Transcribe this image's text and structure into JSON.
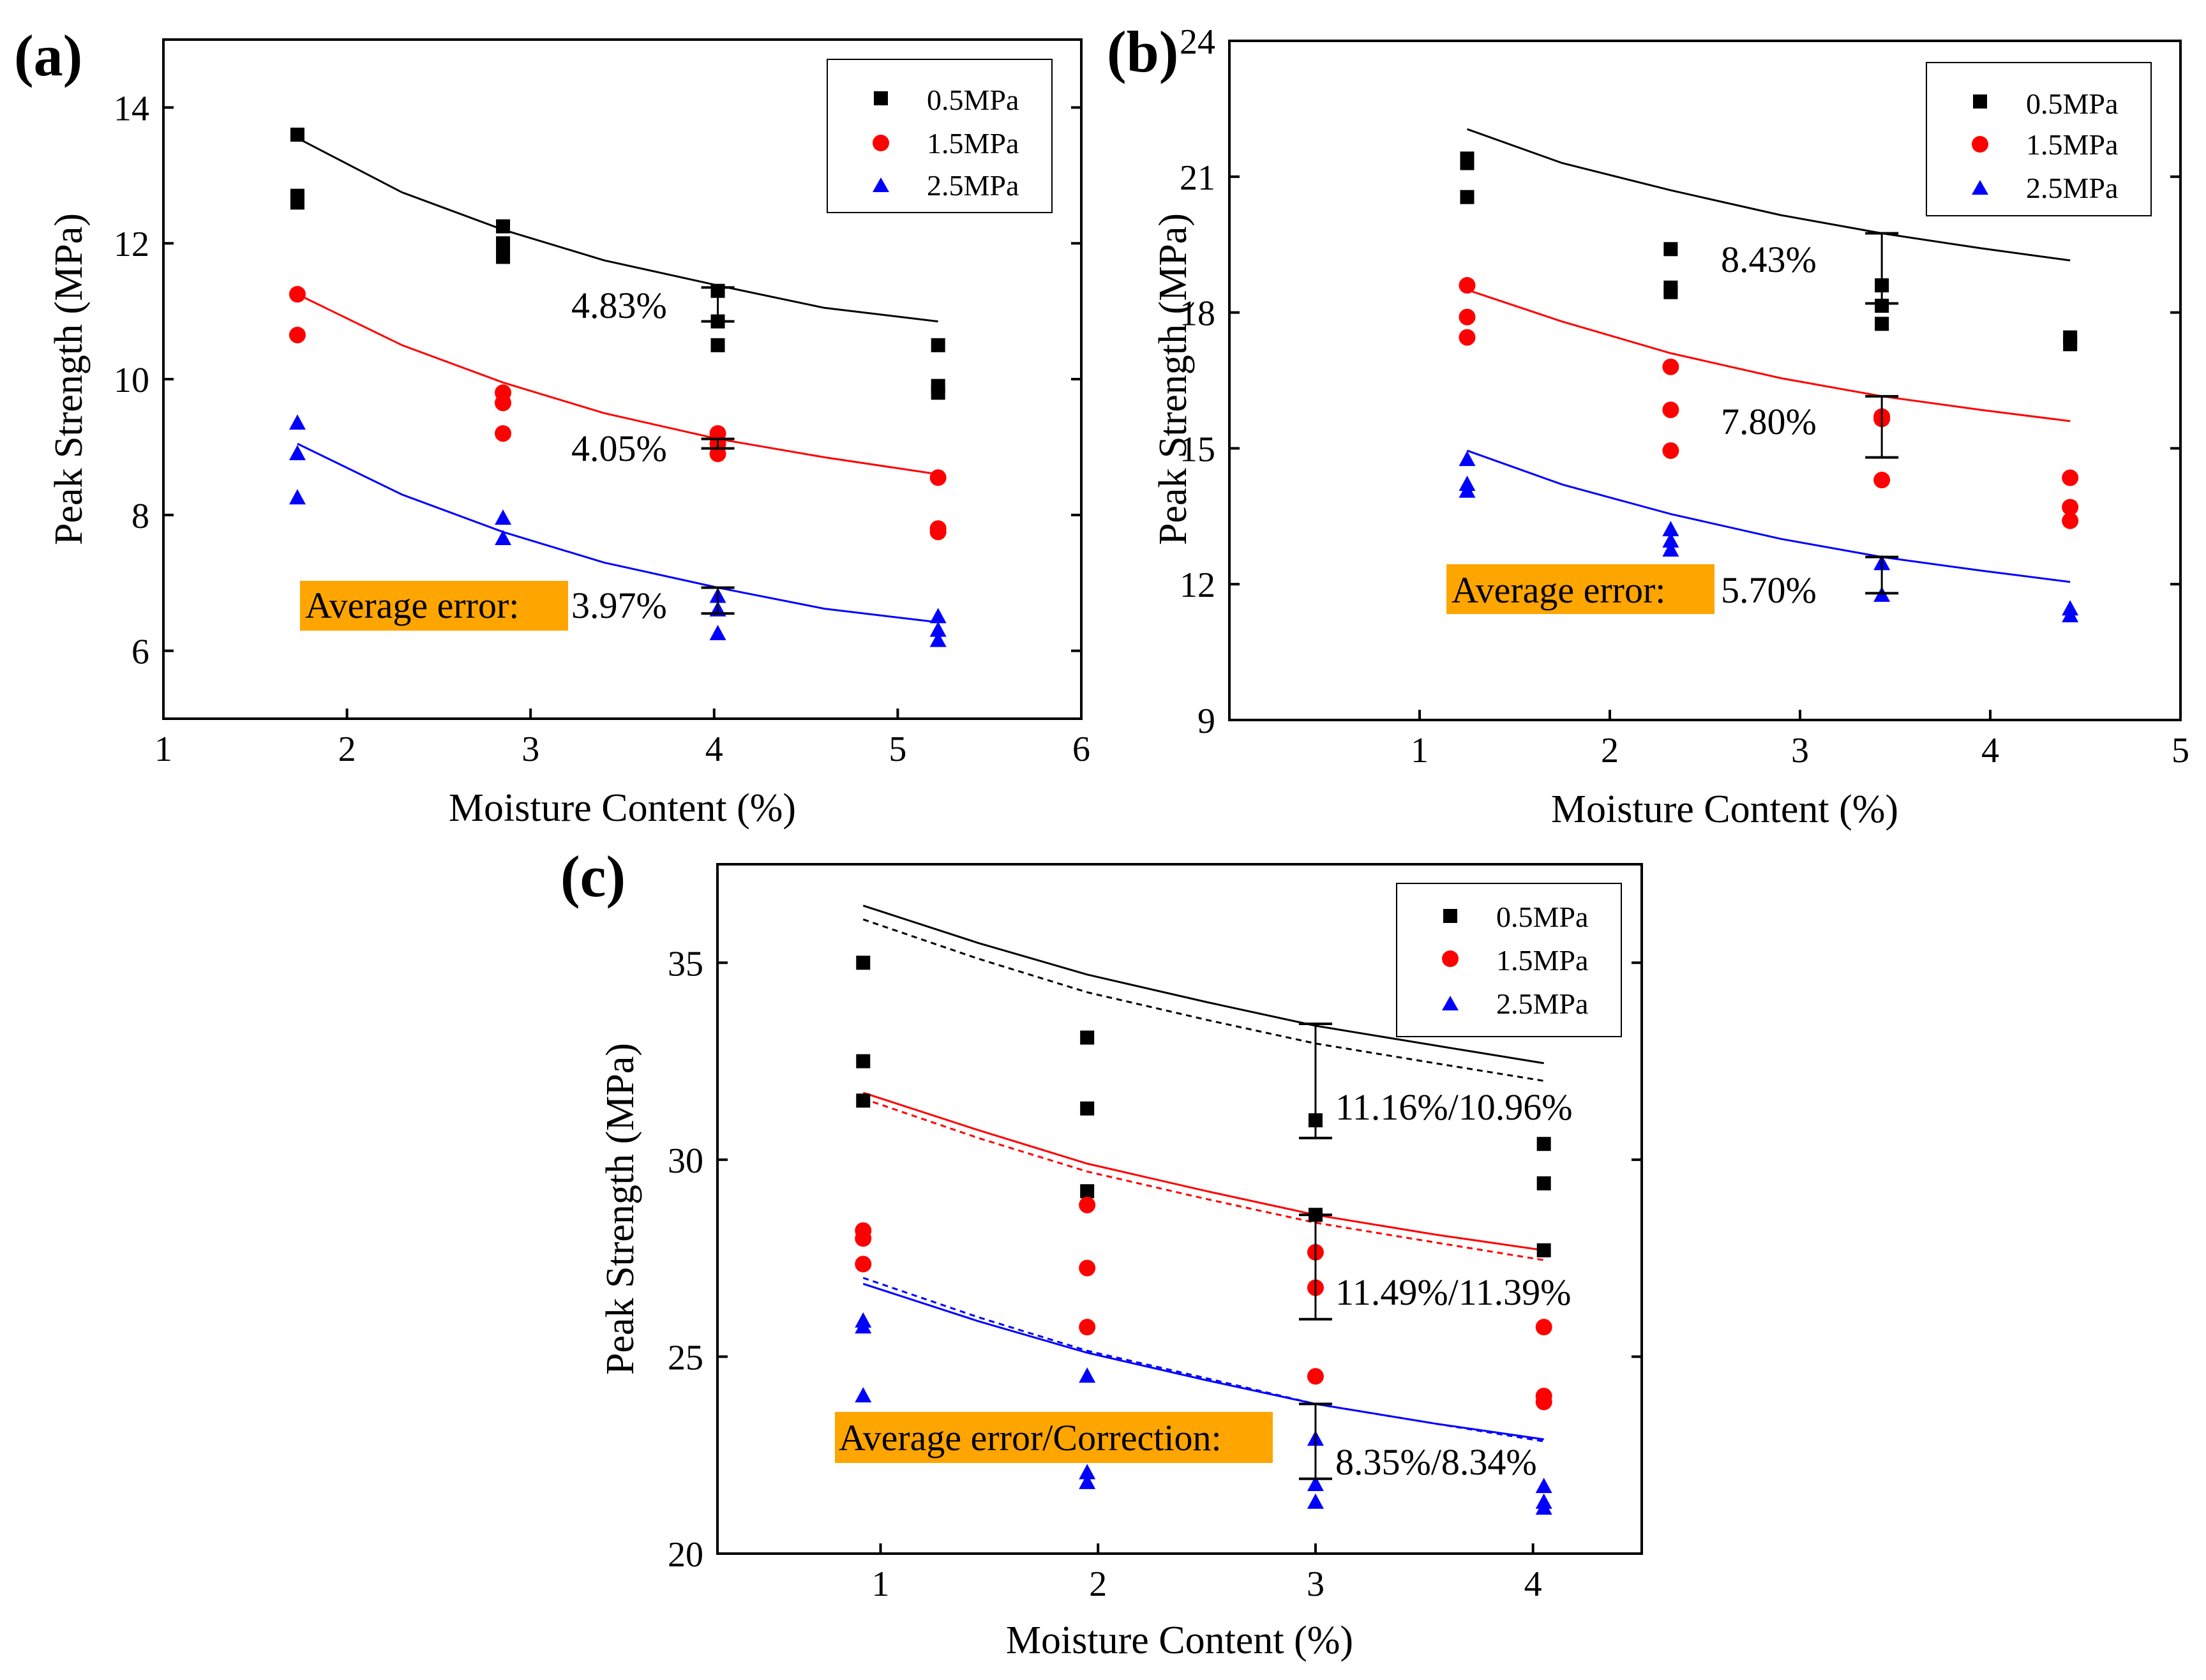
{
  "chart_data": [
    {
      "panel": "(a)",
      "type": "scatter",
      "xlabel": "Moisture Content (%)",
      "ylabel": "Peak Strength (MPa)",
      "xlim": [
        1,
        6
      ],
      "ylim": [
        5,
        15
      ],
      "xticks": [
        1,
        2,
        3,
        4,
        5,
        6
      ],
      "yticks": [
        6,
        8,
        10,
        12,
        14
      ],
      "legend": {
        "position": "top-right"
      },
      "series": [
        {
          "name": "0.5MPa",
          "marker": "square",
          "color": "#000000",
          "points": [
            [
              1.73,
              13.6
            ],
            [
              1.73,
              12.7
            ],
            [
              1.73,
              12.6
            ],
            [
              2.85,
              12.25
            ],
            [
              2.85,
              12.0
            ],
            [
              2.85,
              11.8
            ],
            [
              4.02,
              11.3
            ],
            [
              4.02,
              10.85
            ],
            [
              4.02,
              10.5
            ],
            [
              5.22,
              10.5
            ],
            [
              5.22,
              9.9
            ],
            [
              5.22,
              9.8
            ]
          ],
          "fit": {
            "x": [
              1.73,
              2.3,
              2.85,
              3.4,
              4.02,
              4.6,
              5.22
            ],
            "y": [
              13.55,
              12.75,
              12.2,
              11.75,
              11.38,
              11.05,
              10.85
            ]
          }
        },
        {
          "name": "1.5MPa",
          "marker": "circle",
          "color": "#ff0000",
          "points": [
            [
              1.73,
              11.25
            ],
            [
              1.73,
              10.65
            ],
            [
              2.85,
              9.8
            ],
            [
              2.85,
              9.65
            ],
            [
              2.85,
              9.2
            ],
            [
              4.02,
              9.2
            ],
            [
              4.02,
              9.05
            ],
            [
              4.02,
              8.9
            ],
            [
              5.22,
              8.55
            ],
            [
              5.22,
              7.8
            ],
            [
              5.22,
              7.75
            ]
          ],
          "fit": {
            "x": [
              1.73,
              2.3,
              2.85,
              3.4,
              4.02,
              4.6,
              5.22
            ],
            "y": [
              11.25,
              10.5,
              9.95,
              9.5,
              9.12,
              8.85,
              8.6
            ]
          }
        },
        {
          "name": "2.5MPa",
          "marker": "triangle",
          "color": "#0000ff",
          "points": [
            [
              1.73,
              9.35
            ],
            [
              1.73,
              8.9
            ],
            [
              1.73,
              8.25
            ],
            [
              2.85,
              7.95
            ],
            [
              2.85,
              7.65
            ],
            [
              4.02,
              6.8
            ],
            [
              4.02,
              6.6
            ],
            [
              4.02,
              6.25
            ],
            [
              5.22,
              6.5
            ],
            [
              5.22,
              6.3
            ],
            [
              5.22,
              6.15
            ]
          ],
          "fit": {
            "x": [
              1.73,
              2.3,
              2.85,
              3.4,
              4.02,
              4.6,
              5.22
            ],
            "y": [
              9.05,
              8.3,
              7.75,
              7.3,
              6.93,
              6.62,
              6.42
            ]
          }
        }
      ],
      "error_bars": [
        {
          "x": 4.02,
          "low": 10.85,
          "high": 11.35,
          "label": "4.83%"
        },
        {
          "x": 4.02,
          "low": 8.98,
          "high": 9.12,
          "label": "4.05%"
        },
        {
          "x": 4.02,
          "low": 6.55,
          "high": 6.93,
          "label": "3.97%"
        }
      ],
      "box_label": "Average error:"
    },
    {
      "panel": "(b)",
      "type": "scatter",
      "xlabel": "Moisture Content (%)",
      "ylabel": "Peak Strength (MPa)",
      "xlim": [
        0,
        5
      ],
      "ylim": [
        9,
        24
      ],
      "xticks": [
        1,
        2,
        3,
        4,
        5
      ],
      "yticks": [
        9,
        12,
        15,
        18,
        21,
        24
      ],
      "legend": {
        "position": "top-right"
      },
      "series": [
        {
          "name": "0.5MPa",
          "marker": "square",
          "color": "#000000",
          "points": [
            [
              1.25,
              21.4
            ],
            [
              1.25,
              21.3
            ],
            [
              1.25,
              20.55
            ],
            [
              2.32,
              19.4
            ],
            [
              2.32,
              18.55
            ],
            [
              2.32,
              18.45
            ],
            [
              3.43,
              18.6
            ],
            [
              3.43,
              18.15
            ],
            [
              3.43,
              17.75
            ],
            [
              4.42,
              17.45
            ],
            [
              4.42,
              17.3
            ]
          ],
          "fit": {
            "x": [
              1.25,
              1.75,
              2.32,
              2.9,
              3.43,
              3.95,
              4.42
            ],
            "y": [
              22.05,
              21.3,
              20.7,
              20.15,
              19.75,
              19.42,
              19.15
            ]
          }
        },
        {
          "name": "1.5MPa",
          "marker": "circle",
          "color": "#ff0000",
          "points": [
            [
              1.25,
              18.6
            ],
            [
              1.25,
              17.9
            ],
            [
              1.25,
              17.45
            ],
            [
              2.32,
              16.8
            ],
            [
              2.32,
              15.85
            ],
            [
              2.32,
              14.95
            ],
            [
              3.43,
              15.7
            ],
            [
              3.43,
              15.65
            ],
            [
              3.43,
              14.3
            ],
            [
              4.42,
              14.35
            ],
            [
              4.42,
              13.7
            ],
            [
              4.42,
              13.4
            ]
          ],
          "fit": {
            "x": [
              1.25,
              1.75,
              2.32,
              2.9,
              3.43,
              3.95,
              4.42
            ],
            "y": [
              18.5,
              17.8,
              17.1,
              16.55,
              16.15,
              15.85,
              15.6
            ]
          }
        },
        {
          "name": "2.5MPa",
          "marker": "triangle",
          "color": "#0000ff",
          "points": [
            [
              1.25,
              14.75
            ],
            [
              1.25,
              14.2
            ],
            [
              1.25,
              14.05
            ],
            [
              2.32,
              13.2
            ],
            [
              2.32,
              12.95
            ],
            [
              2.32,
              12.75
            ],
            [
              3.43,
              12.45
            ],
            [
              3.43,
              11.75
            ],
            [
              4.42,
              11.45
            ],
            [
              4.42,
              11.3
            ]
          ],
          "fit": {
            "x": [
              1.25,
              1.75,
              2.32,
              2.9,
              3.43,
              3.95,
              4.42
            ],
            "y": [
              14.95,
              14.2,
              13.55,
              13.0,
              12.6,
              12.3,
              12.05
            ]
          }
        }
      ],
      "error_bars": [
        {
          "x": 3.43,
          "low": 18.2,
          "high": 19.75,
          "label": "8.43%"
        },
        {
          "x": 3.43,
          "low": 14.8,
          "high": 16.15,
          "label": "7.80%"
        },
        {
          "x": 3.43,
          "low": 11.8,
          "high": 12.6,
          "label": "5.70%"
        }
      ],
      "box_label": "Average error:"
    },
    {
      "panel": "(c)",
      "type": "scatter",
      "xlabel": "Moisture Content (%)",
      "ylabel": "Peak Strength (MPa)",
      "xlim": [
        0.25,
        4.5
      ],
      "ylim": [
        20,
        37.5
      ],
      "xticks": [
        1,
        2,
        3,
        4
      ],
      "yticks": [
        20,
        25,
        30,
        35
      ],
      "legend": {
        "position": "top-right"
      },
      "series": [
        {
          "name": "0.5MPa",
          "marker": "square",
          "color": "#000000",
          "points": [
            [
              0.92,
              35.0
            ],
            [
              0.92,
              32.5
            ],
            [
              0.92,
              31.5
            ],
            [
              1.95,
              33.1
            ],
            [
              1.95,
              31.3
            ],
            [
              1.95,
              29.2
            ],
            [
              3.0,
              31.0
            ],
            [
              3.0,
              28.6
            ],
            [
              4.05,
              30.4
            ],
            [
              4.05,
              29.4
            ],
            [
              4.05,
              27.7
            ]
          ],
          "fit": {
            "x": [
              0.92,
              1.45,
              1.95,
              2.5,
              3.0,
              3.55,
              4.05
            ],
            "y": [
              36.45,
              35.5,
              34.7,
              34.0,
              33.4,
              32.9,
              32.45
            ]
          },
          "fit_corrected": {
            "x": [
              0.92,
              1.45,
              1.95,
              2.5,
              3.0,
              3.55,
              4.05
            ],
            "y": [
              36.1,
              35.1,
              34.25,
              33.55,
              32.95,
              32.45,
              32.0
            ]
          }
        },
        {
          "name": "1.5MPa",
          "marker": "circle",
          "color": "#ff0000",
          "points": [
            [
              0.92,
              28.2
            ],
            [
              0.92,
              28.0
            ],
            [
              0.92,
              27.35
            ],
            [
              1.95,
              28.85
            ],
            [
              1.95,
              27.25
            ],
            [
              1.95,
              25.75
            ],
            [
              3.0,
              27.65
            ],
            [
              3.0,
              26.75
            ],
            [
              3.0,
              24.5
            ],
            [
              4.05,
              25.75
            ],
            [
              4.05,
              24.0
            ],
            [
              4.05,
              23.85
            ]
          ],
          "fit": {
            "x": [
              0.92,
              1.45,
              1.95,
              2.5,
              3.0,
              3.55,
              4.05
            ],
            "y": [
              31.7,
              30.75,
              29.9,
              29.2,
              28.6,
              28.1,
              27.7
            ]
          },
          "fit_corrected": {
            "x": [
              0.92,
              1.45,
              1.95,
              2.5,
              3.0,
              3.55,
              4.05
            ],
            "y": [
              31.55,
              30.55,
              29.7,
              29.0,
              28.4,
              27.9,
              27.45
            ]
          }
        },
        {
          "name": "2.5MPa",
          "marker": "triangle",
          "color": "#0000ff",
          "points": [
            [
              0.92,
              25.9
            ],
            [
              0.92,
              25.75
            ],
            [
              0.92,
              24.0
            ],
            [
              1.95,
              24.5
            ],
            [
              1.95,
              22.05
            ],
            [
              1.95,
              21.8
            ],
            [
              3.0,
              22.9
            ],
            [
              3.0,
              21.75
            ],
            [
              3.0,
              21.3
            ],
            [
              4.05,
              21.7
            ],
            [
              4.05,
              21.3
            ],
            [
              4.05,
              21.15
            ]
          ],
          "fit": {
            "x": [
              0.92,
              1.45,
              1.95,
              2.5,
              3.0,
              3.55,
              4.05
            ],
            "y": [
              26.85,
              25.9,
              25.1,
              24.4,
              23.8,
              23.3,
              22.9
            ]
          },
          "fit_corrected": {
            "x": [
              0.92,
              1.45,
              1.95,
              2.5,
              3.0,
              3.55,
              4.05
            ],
            "y": [
              27.0,
              26.0,
              25.15,
              24.45,
              23.8,
              23.3,
              22.85
            ]
          }
        }
      ],
      "error_bars": [
        {
          "x": 3.0,
          "low": 30.55,
          "high": 33.45,
          "label": "11.16%/10.96%"
        },
        {
          "x": 3.0,
          "low": 25.95,
          "high": 28.6,
          "label": "11.49%/11.39%"
        },
        {
          "x": 3.0,
          "low": 21.9,
          "high": 23.8,
          "label": "8.35%/8.34%"
        }
      ],
      "box_label": "Average error/Correction:"
    }
  ],
  "colors": {
    "box": "#ffa500",
    "black": "#000000",
    "red": "#ff0000",
    "blue": "#0000ff"
  }
}
